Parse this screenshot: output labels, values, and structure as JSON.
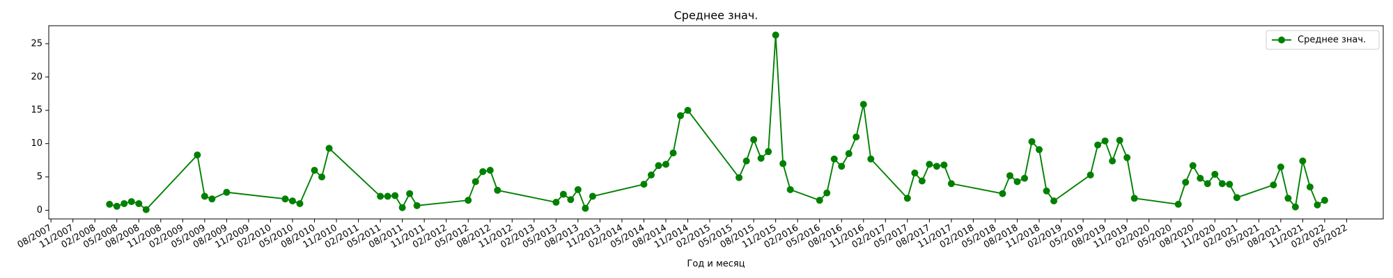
{
  "chart_data": {
    "type": "line",
    "title": "Среднее знач.",
    "x_label": "Год и месяц",
    "x": [
      "2008-04",
      "2008-05",
      "2008-06",
      "2008-07",
      "2008-08",
      "2008-09",
      "2009-04",
      "2009-05",
      "2009-06",
      "2009-08",
      "2010-04",
      "2010-05",
      "2010-06",
      "2010-08",
      "2010-09",
      "2010-10",
      "2011-05",
      "2011-06",
      "2011-07",
      "2011-08",
      "2011-09",
      "2011-10",
      "2012-05",
      "2012-06",
      "2012-07",
      "2012-08",
      "2012-09",
      "2013-05",
      "2013-06",
      "2013-07",
      "2013-08",
      "2013-09",
      "2013-10",
      "2014-05",
      "2014-06",
      "2014-07",
      "2014-08",
      "2014-09",
      "2014-10",
      "2014-11",
      "2015-06",
      "2015-07",
      "2015-08",
      "2015-09",
      "2015-10",
      "2015-11",
      "2015-12",
      "2016-01",
      "2016-05",
      "2016-06",
      "2016-07",
      "2016-08",
      "2016-09",
      "2016-10",
      "2016-11",
      "2016-12",
      "2017-05",
      "2017-06",
      "2017-07",
      "2017-08",
      "2017-09",
      "2017-10",
      "2017-11",
      "2018-06",
      "2018-07",
      "2018-08",
      "2018-09",
      "2018-10",
      "2018-11",
      "2018-12",
      "2019-01",
      "2019-06",
      "2019-07",
      "2019-08",
      "2019-09",
      "2019-10",
      "2019-11",
      "2019-12",
      "2020-06",
      "2020-07",
      "2020-08",
      "2020-09",
      "2020-10",
      "2020-11",
      "2020-12",
      "2021-01",
      "2021-02",
      "2021-07",
      "2021-08",
      "2021-09",
      "2021-10",
      "2021-11",
      "2021-12",
      "2022-01",
      "2022-02"
    ],
    "series": [
      {
        "name": "Среднее знач.",
        "color": "#008000",
        "values": [
          0.9,
          0.6,
          1.0,
          1.3,
          1.0,
          0.1,
          8.3,
          2.1,
          1.7,
          2.7,
          1.7,
          1.4,
          1.0,
          6.0,
          5.0,
          9.3,
          2.1,
          2.1,
          2.2,
          0.4,
          2.5,
          0.7,
          1.5,
          4.3,
          5.8,
          6.0,
          3.0,
          1.2,
          2.4,
          1.6,
          3.1,
          0.3,
          2.1,
          3.9,
          5.3,
          6.7,
          6.9,
          8.6,
          14.2,
          15.0,
          4.9,
          7.4,
          10.6,
          7.8,
          8.8,
          26.3,
          7.0,
          3.1,
          1.5,
          2.6,
          7.7,
          6.6,
          8.5,
          11.0,
          15.9,
          7.7,
          1.8,
          5.6,
          4.4,
          6.9,
          6.6,
          6.8,
          4.0,
          2.5,
          5.2,
          4.3,
          4.8,
          10.3,
          9.1,
          2.9,
          1.4,
          5.3,
          9.8,
          10.4,
          7.4,
          10.5,
          7.9,
          1.8,
          0.9,
          4.2,
          6.7,
          4.8,
          4.0,
          5.4,
          4.0,
          3.9,
          1.9,
          3.8,
          6.5,
          1.8,
          0.5,
          7.4,
          3.5,
          0.8,
          1.5
        ]
      }
    ],
    "xlim": [
      "2007-08",
      "2022-10"
    ],
    "xticks": [
      {
        "value": "2007-08",
        "label": "08/2007"
      },
      {
        "value": "2007-11",
        "label": "11/2007"
      },
      {
        "value": "2008-02",
        "label": "02/2008"
      },
      {
        "value": "2008-05",
        "label": "05/2008"
      },
      {
        "value": "2008-08",
        "label": "08/2008"
      },
      {
        "value": "2008-11",
        "label": "11/2008"
      },
      {
        "value": "2009-02",
        "label": "02/2009"
      },
      {
        "value": "2009-05",
        "label": "05/2009"
      },
      {
        "value": "2009-08",
        "label": "08/2009"
      },
      {
        "value": "2009-11",
        "label": "11/2009"
      },
      {
        "value": "2010-02",
        "label": "02/2010"
      },
      {
        "value": "2010-05",
        "label": "05/2010"
      },
      {
        "value": "2010-08",
        "label": "08/2010"
      },
      {
        "value": "2010-11",
        "label": "11/2010"
      },
      {
        "value": "2011-02",
        "label": "02/2011"
      },
      {
        "value": "2011-05",
        "label": "05/2011"
      },
      {
        "value": "2011-08",
        "label": "08/2011"
      },
      {
        "value": "2011-11",
        "label": "11/2011"
      },
      {
        "value": "2012-02",
        "label": "02/2012"
      },
      {
        "value": "2012-05",
        "label": "05/2012"
      },
      {
        "value": "2012-08",
        "label": "08/2012"
      },
      {
        "value": "2012-11",
        "label": "11/2012"
      },
      {
        "value": "2013-02",
        "label": "02/2013"
      },
      {
        "value": "2013-05",
        "label": "05/2013"
      },
      {
        "value": "2013-08",
        "label": "08/2013"
      },
      {
        "value": "2013-11",
        "label": "11/2013"
      },
      {
        "value": "2014-02",
        "label": "02/2014"
      },
      {
        "value": "2014-05",
        "label": "05/2014"
      },
      {
        "value": "2014-08",
        "label": "08/2014"
      },
      {
        "value": "2014-11",
        "label": "11/2014"
      },
      {
        "value": "2015-02",
        "label": "02/2015"
      },
      {
        "value": "2015-05",
        "label": "05/2015"
      },
      {
        "value": "2015-08",
        "label": "08/2015"
      },
      {
        "value": "2015-11",
        "label": "11/2015"
      },
      {
        "value": "2016-02",
        "label": "02/2016"
      },
      {
        "value": "2016-05",
        "label": "05/2016"
      },
      {
        "value": "2016-08",
        "label": "08/2016"
      },
      {
        "value": "2016-11",
        "label": "11/2016"
      },
      {
        "value": "2017-02",
        "label": "02/2017"
      },
      {
        "value": "2017-05",
        "label": "05/2017"
      },
      {
        "value": "2017-08",
        "label": "08/2017"
      },
      {
        "value": "2017-11",
        "label": "11/2017"
      },
      {
        "value": "2018-02",
        "label": "02/2018"
      },
      {
        "value": "2018-05",
        "label": "05/2018"
      },
      {
        "value": "2018-08",
        "label": "08/2018"
      },
      {
        "value": "2018-11",
        "label": "11/2018"
      },
      {
        "value": "2019-02",
        "label": "02/2019"
      },
      {
        "value": "2019-05",
        "label": "05/2019"
      },
      {
        "value": "2019-08",
        "label": "08/2019"
      },
      {
        "value": "2019-11",
        "label": "11/2019"
      },
      {
        "value": "2020-02",
        "label": "02/2020"
      },
      {
        "value": "2020-05",
        "label": "05/2020"
      },
      {
        "value": "2020-08",
        "label": "08/2020"
      },
      {
        "value": "2020-11",
        "label": "11/2020"
      },
      {
        "value": "2021-02",
        "label": "02/2021"
      },
      {
        "value": "2021-05",
        "label": "05/2021"
      },
      {
        "value": "2021-08",
        "label": "08/2021"
      },
      {
        "value": "2021-11",
        "label": "11/2021"
      },
      {
        "value": "2022-02",
        "label": "02/2022"
      },
      {
        "value": "2022-05",
        "label": "05/2022"
      }
    ],
    "ylim": [
      -1.3,
      27.7
    ],
    "yticks": [
      0,
      5,
      10,
      15,
      20,
      25
    ],
    "grid": false,
    "legend": "upper right",
    "marker": "o"
  }
}
